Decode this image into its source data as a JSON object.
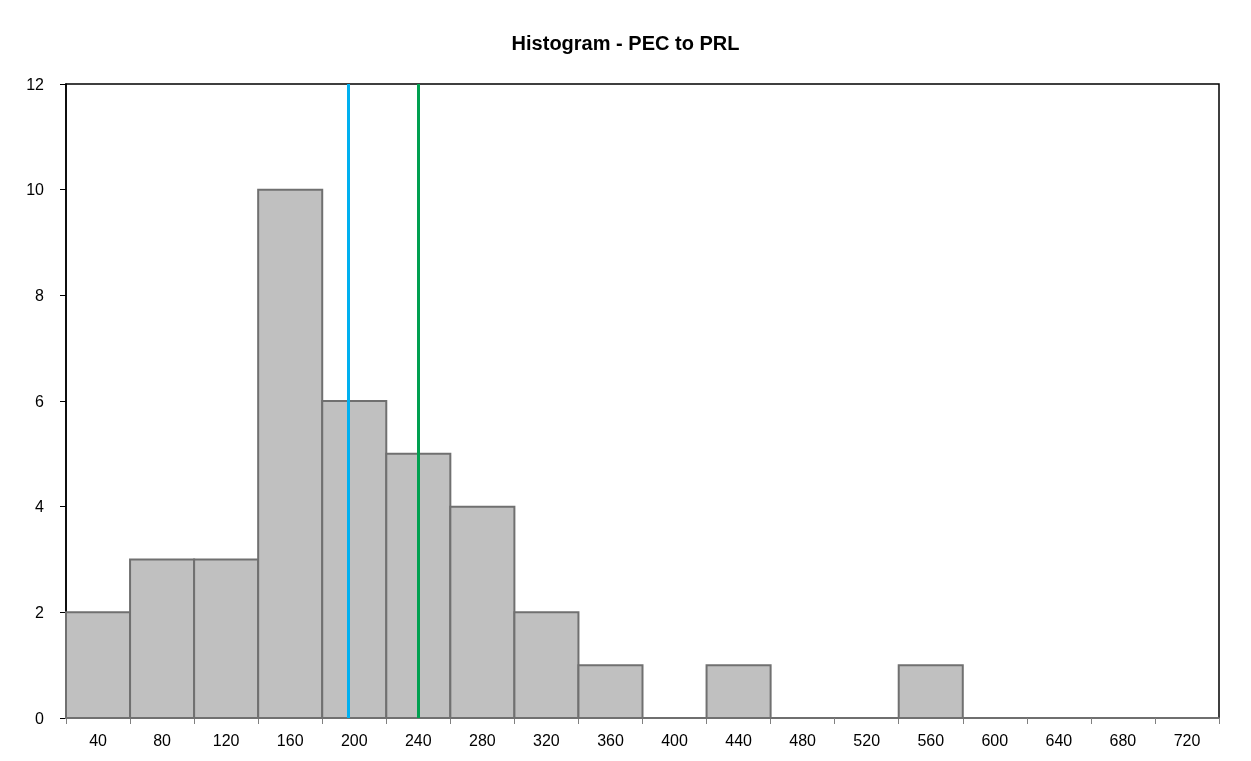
{
  "chart_data": {
    "type": "histogram",
    "title": "Histogram - PEC to PRL",
    "bins": [
      20,
      60,
      100,
      140,
      180,
      220,
      260,
      300,
      340,
      380,
      420,
      460,
      500,
      540,
      580,
      620,
      660,
      700,
      740
    ],
    "values": [
      2,
      3,
      3,
      10,
      6,
      5,
      4,
      2,
      1,
      0,
      1,
      0,
      0,
      1,
      0,
      0,
      0,
      0
    ],
    "color": "#c0c0c0",
    "xlim": [
      20,
      740
    ],
    "xticks": [
      {
        "value": 20,
        "label": null
      },
      {
        "value": 40,
        "label": "40"
      },
      {
        "value": 60,
        "label": null
      },
      {
        "value": 80,
        "label": "80"
      },
      {
        "value": 100,
        "label": null
      },
      {
        "value": 120,
        "label": "120"
      },
      {
        "value": 140,
        "label": null
      },
      {
        "value": 160,
        "label": "160"
      },
      {
        "value": 180,
        "label": null
      },
      {
        "value": 200,
        "label": "200"
      },
      {
        "value": 220,
        "label": null
      },
      {
        "value": 240,
        "label": "240"
      },
      {
        "value": 260,
        "label": null
      },
      {
        "value": 280,
        "label": "280"
      },
      {
        "value": 300,
        "label": null
      },
      {
        "value": 320,
        "label": "320"
      },
      {
        "value": 340,
        "label": null
      },
      {
        "value": 360,
        "label": "360"
      },
      {
        "value": 380,
        "label": null
      },
      {
        "value": 400,
        "label": "400"
      },
      {
        "value": 420,
        "label": null
      },
      {
        "value": 440,
        "label": "440"
      },
      {
        "value": 460,
        "label": null
      },
      {
        "value": 480,
        "label": "480"
      },
      {
        "value": 500,
        "label": null
      },
      {
        "value": 520,
        "label": "520"
      },
      {
        "value": 540,
        "label": null
      },
      {
        "value": 560,
        "label": "560"
      },
      {
        "value": 580,
        "label": null
      },
      {
        "value": 600,
        "label": "600"
      },
      {
        "value": 620,
        "label": null
      },
      {
        "value": 640,
        "label": "640"
      },
      {
        "value": 660,
        "label": null
      },
      {
        "value": 680,
        "label": "680"
      },
      {
        "value": 700,
        "label": null
      },
      {
        "value": 720,
        "label": "720"
      },
      {
        "value": 740,
        "label": null
      }
    ],
    "ylim": [
      0,
      12
    ],
    "yticks": [
      0,
      2,
      4,
      6,
      8,
      10,
      12
    ],
    "grid": false,
    "ref_lines": [
      {
        "axis": "x",
        "value": 196,
        "color": "#00b0f0"
      },
      {
        "axis": "x",
        "value": 240,
        "color": "#00a050"
      }
    ]
  }
}
